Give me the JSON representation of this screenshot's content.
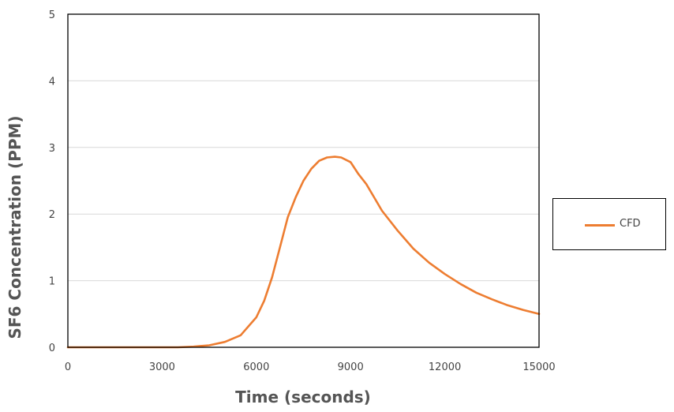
{
  "chart_data": {
    "type": "line",
    "title": "",
    "xlabel": "Time (seconds)",
    "ylabel": "SF6 Concentration (PPM)",
    "xlim": [
      0,
      15000
    ],
    "ylim": [
      0,
      5
    ],
    "x_ticks": [
      "0",
      "3000",
      "6000",
      "9000",
      "12000",
      "15000"
    ],
    "y_ticks": [
      "0",
      "1",
      "2",
      "3",
      "4",
      "5"
    ],
    "grid": "horizontal",
    "legend_position": "right",
    "series": [
      {
        "name": "CFD",
        "color": "#ED7D31",
        "x": [
          0,
          1000,
          2000,
          3000,
          3500,
          4000,
          4500,
          5000,
          5500,
          6000,
          6250,
          6500,
          6750,
          7000,
          7250,
          7500,
          7750,
          8000,
          8250,
          8500,
          8700,
          9000,
          9250,
          9500,
          9750,
          10000,
          10500,
          11000,
          11500,
          12000,
          12500,
          13000,
          13500,
          14000,
          14500,
          15000
        ],
        "y": [
          0,
          0,
          0,
          0,
          0,
          0.01,
          0.03,
          0.08,
          0.18,
          0.45,
          0.7,
          1.05,
          1.5,
          1.95,
          2.25,
          2.5,
          2.68,
          2.8,
          2.85,
          2.86,
          2.85,
          2.78,
          2.6,
          2.45,
          2.25,
          2.05,
          1.75,
          1.48,
          1.27,
          1.1,
          0.95,
          0.82,
          0.72,
          0.63,
          0.56,
          0.5
        ]
      }
    ]
  }
}
